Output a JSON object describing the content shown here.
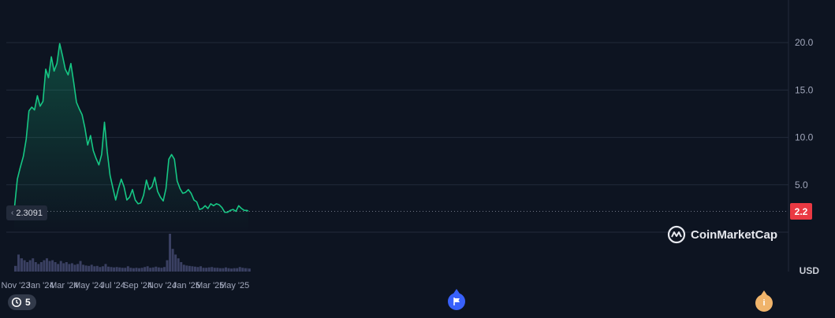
{
  "chart_data": {
    "type": "area",
    "title": "",
    "xlabel": "",
    "ylabel": "USD",
    "x_tick_labels": [
      "Nov '23",
      "Jan '24",
      "Mar '24",
      "May '24",
      "Jul '24",
      "Sep '24",
      "Nov '24",
      "Jan '25",
      "Mar '25",
      "May '25"
    ],
    "y_tick_labels": [
      "5.0",
      "10.0",
      "15.0",
      "20.0"
    ],
    "ylim": [
      0,
      24.5
    ],
    "price_series": [
      [
        "2023-10-28",
        2.3
      ],
      [
        "2023-11-05",
        5.6
      ],
      [
        "2023-11-12",
        6.8
      ],
      [
        "2023-11-20",
        8.0
      ],
      [
        "2023-11-27",
        9.8
      ],
      [
        "2023-12-04",
        12.8
      ],
      [
        "2023-12-11",
        13.2
      ],
      [
        "2023-12-18",
        12.9
      ],
      [
        "2023-12-25",
        14.4
      ],
      [
        "2024-01-01",
        13.3
      ],
      [
        "2024-01-08",
        13.8
      ],
      [
        "2024-01-15",
        17.2
      ],
      [
        "2024-01-22",
        16.3
      ],
      [
        "2024-01-29",
        18.5
      ],
      [
        "2024-02-05",
        17.0
      ],
      [
        "2024-02-12",
        17.8
      ],
      [
        "2024-02-19",
        19.9
      ],
      [
        "2024-02-26",
        18.6
      ],
      [
        "2024-03-04",
        17.2
      ],
      [
        "2024-03-11",
        16.6
      ],
      [
        "2024-03-18",
        17.8
      ],
      [
        "2024-03-25",
        15.8
      ],
      [
        "2024-04-01",
        13.7
      ],
      [
        "2024-04-08",
        13.0
      ],
      [
        "2024-04-15",
        12.4
      ],
      [
        "2024-04-22",
        11.0
      ],
      [
        "2024-04-29",
        9.2
      ],
      [
        "2024-05-06",
        10.2
      ],
      [
        "2024-05-13",
        8.6
      ],
      [
        "2024-05-20",
        7.8
      ],
      [
        "2024-05-27",
        7.1
      ],
      [
        "2024-06-03",
        8.2
      ],
      [
        "2024-06-10",
        11.6
      ],
      [
        "2024-06-17",
        8.5
      ],
      [
        "2024-06-24",
        6.0
      ],
      [
        "2024-07-01",
        4.7
      ],
      [
        "2024-07-08",
        3.4
      ],
      [
        "2024-07-15",
        4.6
      ],
      [
        "2024-07-22",
        5.6
      ],
      [
        "2024-07-29",
        4.8
      ],
      [
        "2024-08-05",
        3.4
      ],
      [
        "2024-08-12",
        3.7
      ],
      [
        "2024-08-19",
        4.5
      ],
      [
        "2024-08-26",
        3.4
      ],
      [
        "2024-09-02",
        3.0
      ],
      [
        "2024-09-09",
        3.1
      ],
      [
        "2024-09-16",
        3.9
      ],
      [
        "2024-09-23",
        5.5
      ],
      [
        "2024-09-30",
        4.5
      ],
      [
        "2024-10-07",
        4.8
      ],
      [
        "2024-10-14",
        5.8
      ],
      [
        "2024-10-21",
        4.3
      ],
      [
        "2024-10-28",
        3.7
      ],
      [
        "2024-11-04",
        3.3
      ],
      [
        "2024-11-11",
        4.6
      ],
      [
        "2024-11-18",
        7.7
      ],
      [
        "2024-11-25",
        8.2
      ],
      [
        "2024-12-02",
        7.7
      ],
      [
        "2024-12-09",
        5.4
      ],
      [
        "2024-12-16",
        4.6
      ],
      [
        "2024-12-23",
        4.1
      ],
      [
        "2024-12-30",
        4.2
      ],
      [
        "2025-01-06",
        4.5
      ],
      [
        "2025-01-13",
        4.1
      ],
      [
        "2025-01-20",
        3.4
      ],
      [
        "2025-01-27",
        3.2
      ],
      [
        "2025-02-03",
        2.4
      ],
      [
        "2025-02-10",
        2.5
      ],
      [
        "2025-02-17",
        2.8
      ],
      [
        "2025-02-24",
        2.5
      ],
      [
        "2025-03-03",
        3.0
      ],
      [
        "2025-03-10",
        2.8
      ],
      [
        "2025-03-17",
        3.0
      ],
      [
        "2025-03-24",
        2.9
      ],
      [
        "2025-03-31",
        2.6
      ],
      [
        "2025-04-07",
        2.1
      ],
      [
        "2025-04-14",
        2.1
      ],
      [
        "2025-04-21",
        2.3
      ],
      [
        "2025-04-28",
        2.4
      ],
      [
        "2025-05-05",
        2.2
      ],
      [
        "2025-05-12",
        2.8
      ],
      [
        "2025-05-19",
        2.5
      ],
      [
        "2025-05-26",
        2.3
      ],
      [
        "2025-06-02",
        2.3
      ],
      [
        "2025-06-05",
        2.2
      ]
    ],
    "volume_relative": [
      [
        "2023-10-28",
        0.15
      ],
      [
        "2023-11-05",
        0.45
      ],
      [
        "2023-11-12",
        0.35
      ],
      [
        "2023-11-20",
        0.3
      ],
      [
        "2023-11-27",
        0.25
      ],
      [
        "2023-12-04",
        0.3
      ],
      [
        "2023-12-11",
        0.35
      ],
      [
        "2023-12-18",
        0.25
      ],
      [
        "2023-12-25",
        0.2
      ],
      [
        "2024-01-01",
        0.25
      ],
      [
        "2024-01-08",
        0.3
      ],
      [
        "2024-01-15",
        0.35
      ],
      [
        "2024-01-22",
        0.28
      ],
      [
        "2024-01-29",
        0.3
      ],
      [
        "2024-02-05",
        0.25
      ],
      [
        "2024-02-12",
        0.2
      ],
      [
        "2024-02-19",
        0.28
      ],
      [
        "2024-02-26",
        0.22
      ],
      [
        "2024-03-04",
        0.25
      ],
      [
        "2024-03-11",
        0.2
      ],
      [
        "2024-03-18",
        0.22
      ],
      [
        "2024-03-25",
        0.18
      ],
      [
        "2024-04-01",
        0.2
      ],
      [
        "2024-04-08",
        0.28
      ],
      [
        "2024-04-15",
        0.18
      ],
      [
        "2024-04-22",
        0.16
      ],
      [
        "2024-04-29",
        0.15
      ],
      [
        "2024-05-06",
        0.18
      ],
      [
        "2024-05-13",
        0.14
      ],
      [
        "2024-05-20",
        0.15
      ],
      [
        "2024-05-27",
        0.12
      ],
      [
        "2024-06-03",
        0.14
      ],
      [
        "2024-06-10",
        0.2
      ],
      [
        "2024-06-17",
        0.13
      ],
      [
        "2024-06-24",
        0.12
      ],
      [
        "2024-07-01",
        0.11
      ],
      [
        "2024-07-08",
        0.12
      ],
      [
        "2024-07-15",
        0.11
      ],
      [
        "2024-07-22",
        0.1
      ],
      [
        "2024-07-29",
        0.1
      ],
      [
        "2024-08-05",
        0.14
      ],
      [
        "2024-08-12",
        0.1
      ],
      [
        "2024-08-19",
        0.09
      ],
      [
        "2024-08-26",
        0.1
      ],
      [
        "2024-09-02",
        0.09
      ],
      [
        "2024-09-09",
        0.1
      ],
      [
        "2024-09-16",
        0.12
      ],
      [
        "2024-09-23",
        0.14
      ],
      [
        "2024-09-30",
        0.1
      ],
      [
        "2024-10-07",
        0.11
      ],
      [
        "2024-10-14",
        0.13
      ],
      [
        "2024-10-21",
        0.11
      ],
      [
        "2024-10-28",
        0.1
      ],
      [
        "2024-11-04",
        0.12
      ],
      [
        "2024-11-11",
        0.3
      ],
      [
        "2024-11-18",
        1.0
      ],
      [
        "2024-11-25",
        0.6
      ],
      [
        "2024-12-02",
        0.45
      ],
      [
        "2024-12-09",
        0.35
      ],
      [
        "2024-12-16",
        0.25
      ],
      [
        "2024-12-23",
        0.18
      ],
      [
        "2024-12-30",
        0.16
      ],
      [
        "2025-01-06",
        0.15
      ],
      [
        "2025-01-13",
        0.14
      ],
      [
        "2025-01-20",
        0.13
      ],
      [
        "2025-01-27",
        0.12
      ],
      [
        "2025-02-03",
        0.14
      ],
      [
        "2025-02-10",
        0.1
      ],
      [
        "2025-02-17",
        0.1
      ],
      [
        "2025-02-24",
        0.11
      ],
      [
        "2025-03-03",
        0.12
      ],
      [
        "2025-03-10",
        0.1
      ],
      [
        "2025-03-17",
        0.1
      ],
      [
        "2025-03-24",
        0.09
      ],
      [
        "2025-03-31",
        0.09
      ],
      [
        "2025-04-07",
        0.11
      ],
      [
        "2025-04-14",
        0.09
      ],
      [
        "2025-04-21",
        0.08
      ],
      [
        "2025-04-28",
        0.09
      ],
      [
        "2025-05-05",
        0.09
      ],
      [
        "2025-05-12",
        0.12
      ],
      [
        "2025-05-19",
        0.1
      ],
      [
        "2025-05-26",
        0.09
      ],
      [
        "2025-06-02",
        0.09
      ],
      [
        "2025-06-05",
        0.08
      ]
    ],
    "grid": true,
    "legend": "none",
    "colors": {
      "line": "#16c784",
      "background": "#0d1421",
      "grid": "#222a3a",
      "volume": "#4a4f78",
      "current_price": "#ea3943"
    }
  },
  "labels": {
    "unit": "USD",
    "current_price": "2.2",
    "start_price": "2.3091",
    "brand": "CoinMarketCap",
    "events_count": "5"
  },
  "icons": {
    "start_marker": "chevron-left-icon",
    "events": "history-clock-icon",
    "flag": "flag-icon",
    "info": "info-icon",
    "brand_logo": "coinmarketcap-logo-icon"
  }
}
